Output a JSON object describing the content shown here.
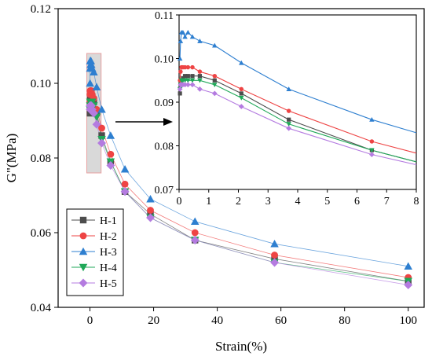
{
  "chart_data": [
    {
      "type": "line",
      "xlabel": "Strain(%)",
      "ylabel": "G\"(MPa)",
      "xlim": [
        -10,
        105
      ],
      "ylim": [
        0.04,
        0.12
      ],
      "xticks": [
        0,
        20,
        40,
        60,
        80,
        100
      ],
      "yticks": [
        0.04,
        0.06,
        0.08,
        0.1,
        0.12
      ],
      "xtick_labels": [
        "0",
        "20",
        "40",
        "60",
        "80",
        "100"
      ],
      "ytick_labels": [
        "0.04",
        "0.06",
        "0.08",
        "0.10",
        "0.12"
      ],
      "legend": "bottom-left",
      "grid": false,
      "series": [
        {
          "name": "H-1",
          "marker": "square",
          "color": "#4d4d4d",
          "x": [
            0.03,
            0.05,
            0.08,
            0.13,
            0.2,
            0.3,
            0.45,
            0.7,
            1.2,
            2.1,
            3.7,
            6.5,
            11,
            19,
            33,
            58,
            100
          ],
          "y": [
            0.092,
            0.094,
            0.095,
            0.0955,
            0.096,
            0.096,
            0.096,
            0.096,
            0.095,
            0.092,
            0.086,
            0.079,
            0.071,
            0.065,
            0.058,
            0.053,
            0.047
          ]
        },
        {
          "name": "H-2",
          "marker": "circle",
          "color": "#ee4444",
          "x": [
            0.03,
            0.05,
            0.08,
            0.13,
            0.2,
            0.3,
            0.45,
            0.7,
            1.2,
            2.1,
            3.7,
            6.5,
            11,
            19,
            33,
            58,
            100
          ],
          "y": [
            0.095,
            0.097,
            0.098,
            0.098,
            0.098,
            0.098,
            0.098,
            0.097,
            0.096,
            0.093,
            0.088,
            0.081,
            0.073,
            0.066,
            0.06,
            0.054,
            0.048
          ]
        },
        {
          "name": "H-3",
          "marker": "triangle-up",
          "color": "#2e7fd0",
          "x": [
            0.03,
            0.05,
            0.08,
            0.13,
            0.2,
            0.3,
            0.45,
            0.7,
            1.2,
            2.1,
            3.7,
            6.5,
            11,
            19,
            33,
            58,
            100
          ],
          "y": [
            0.1,
            0.104,
            0.106,
            0.106,
            0.105,
            0.106,
            0.105,
            0.104,
            0.103,
            0.099,
            0.093,
            0.086,
            0.077,
            0.069,
            0.063,
            0.057,
            0.051
          ]
        },
        {
          "name": "H-4",
          "marker": "triangle-down",
          "color": "#1fa858",
          "x": [
            0.03,
            0.05,
            0.08,
            0.13,
            0.2,
            0.3,
            0.45,
            0.7,
            1.2,
            2.1,
            3.7,
            6.5,
            11,
            19,
            33,
            58,
            100
          ],
          "y": [
            0.093,
            0.094,
            0.095,
            0.095,
            0.095,
            0.095,
            0.095,
            0.095,
            0.094,
            0.091,
            0.085,
            0.079,
            0.071,
            0.064,
            0.058,
            0.052,
            0.047
          ]
        },
        {
          "name": "H-5",
          "marker": "diamond",
          "color": "#b47be0",
          "x": [
            0.03,
            0.05,
            0.08,
            0.13,
            0.2,
            0.3,
            0.45,
            0.7,
            1.2,
            2.1,
            3.7,
            6.5,
            11,
            19,
            33,
            58,
            100
          ],
          "y": [
            0.093,
            0.094,
            0.094,
            0.094,
            0.094,
            0.094,
            0.094,
            0.093,
            0.092,
            0.089,
            0.084,
            0.078,
            0.071,
            0.064,
            0.058,
            0.052,
            0.046
          ]
        }
      ]
    },
    {
      "type": "line",
      "role": "inset",
      "xlim": [
        0,
        8
      ],
      "ylim": [
        0.07,
        0.11
      ],
      "xticks": [
        0,
        1,
        2,
        3,
        4,
        5,
        6,
        7,
        8
      ],
      "yticks": [
        0.07,
        0.08,
        0.09,
        0.1,
        0.11
      ],
      "xtick_labels": [
        "0",
        "1",
        "2",
        "3",
        "4",
        "5",
        "6",
        "7",
        "8"
      ],
      "ytick_labels": [
        "0.07",
        "0.08",
        "0.09",
        "0.10",
        "0.11"
      ],
      "grid": false,
      "series_ref": "same as main chart, zoomed to strain 0–8%",
      "highlight_region": {
        "xlim": [
          -1,
          3.5
        ],
        "ylim": [
          0.076,
          0.108
        ],
        "color": "#e8a0a0"
      }
    }
  ]
}
